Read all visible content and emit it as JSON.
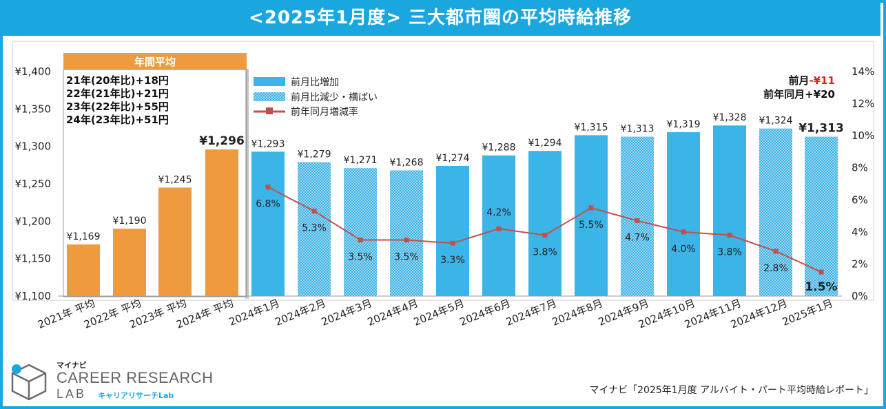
{
  "title": "<2025年1月度> 三大都市圏の平均時給推移",
  "annual_box": {
    "header": "年間平均",
    "lines": [
      "21年(20年比)+18円",
      "22年(21年比)+21円",
      "23年(22年比)+55円",
      "24年(23年比)+51円"
    ]
  },
  "summary": {
    "line1_prefix": "前月",
    "line1_value": "-¥11",
    "line2": "前年同月+¥20"
  },
  "source": "マイナビ「2025年1月度 アルバイト・パート平均時給レポート」",
  "logo": {
    "mynavi": "マイナビ",
    "main": "CAREER RESEARCH",
    "lab": "LAB",
    "sub": "キャリアリサーチLab"
  },
  "colors": {
    "annual": "#ee9b3f",
    "increase": "#3bb4e8",
    "decrease": "#9fd4f1",
    "line": "#c0504d",
    "accent_red": "#e02020",
    "title_bg": "#1aa7e0"
  },
  "chart_data": {
    "type": "bar",
    "categories": [
      "2021年 平均",
      "2022年 平均",
      "2023年 平均",
      "2024年 平均",
      "2024年1月",
      "2024年2月",
      "2024年3月",
      "2024年4月",
      "2024年5月",
      "2024年6月",
      "2024年7月",
      "2024年8月",
      "2024年9月",
      "2024年10月",
      "2024年11月",
      "2024年12月",
      "2025年1月"
    ],
    "values": [
      1169,
      1190,
      1245,
      1296,
      1293,
      1279,
      1271,
      1268,
      1274,
      1288,
      1294,
      1315,
      1313,
      1319,
      1328,
      1324,
      1313
    ],
    "value_labels": [
      "¥1,169",
      "¥1,190",
      "¥1,245",
      "¥1,296",
      "¥1,293",
      "¥1,279",
      "¥1,271",
      "¥1,268",
      "¥1,274",
      "¥1,288",
      "¥1,294",
      "¥1,315",
      "¥1,313",
      "¥1,319",
      "¥1,328",
      "¥1,324",
      "¥1,313"
    ],
    "bar_kind": [
      "annual",
      "annual",
      "annual",
      "annual",
      "increase",
      "decrease",
      "decrease",
      "decrease",
      "increase",
      "increase",
      "increase",
      "increase",
      "decrease",
      "increase",
      "increase",
      "decrease",
      "decrease"
    ],
    "yoy_rate": [
      null,
      null,
      null,
      null,
      6.8,
      5.3,
      3.5,
      3.5,
      3.3,
      4.2,
      3.8,
      5.5,
      4.7,
      4.0,
      3.8,
      2.8,
      1.5
    ],
    "yoy_labels": [
      "",
      "",
      "",
      "",
      "6.8%",
      "5.3%",
      "3.5%",
      "3.5%",
      "3.3%",
      "4.2%",
      "3.8%",
      "5.5%",
      "4.7%",
      "4.0%",
      "3.8%",
      "2.8%",
      "1.5%"
    ],
    "ylim": [
      1100,
      1400
    ],
    "y_ticks": [
      "¥1,100",
      "¥1,150",
      "¥1,200",
      "¥1,250",
      "¥1,300",
      "¥1,350",
      "¥1,400"
    ],
    "y2lim": [
      0,
      14
    ],
    "y2_ticks": [
      "0%",
      "2%",
      "4%",
      "6%",
      "8%",
      "10%",
      "12%",
      "14%"
    ],
    "legend": [
      "前月比増加",
      "前月比減少・横ばい",
      "前年同月増減率"
    ],
    "legend_position": "top-left"
  }
}
